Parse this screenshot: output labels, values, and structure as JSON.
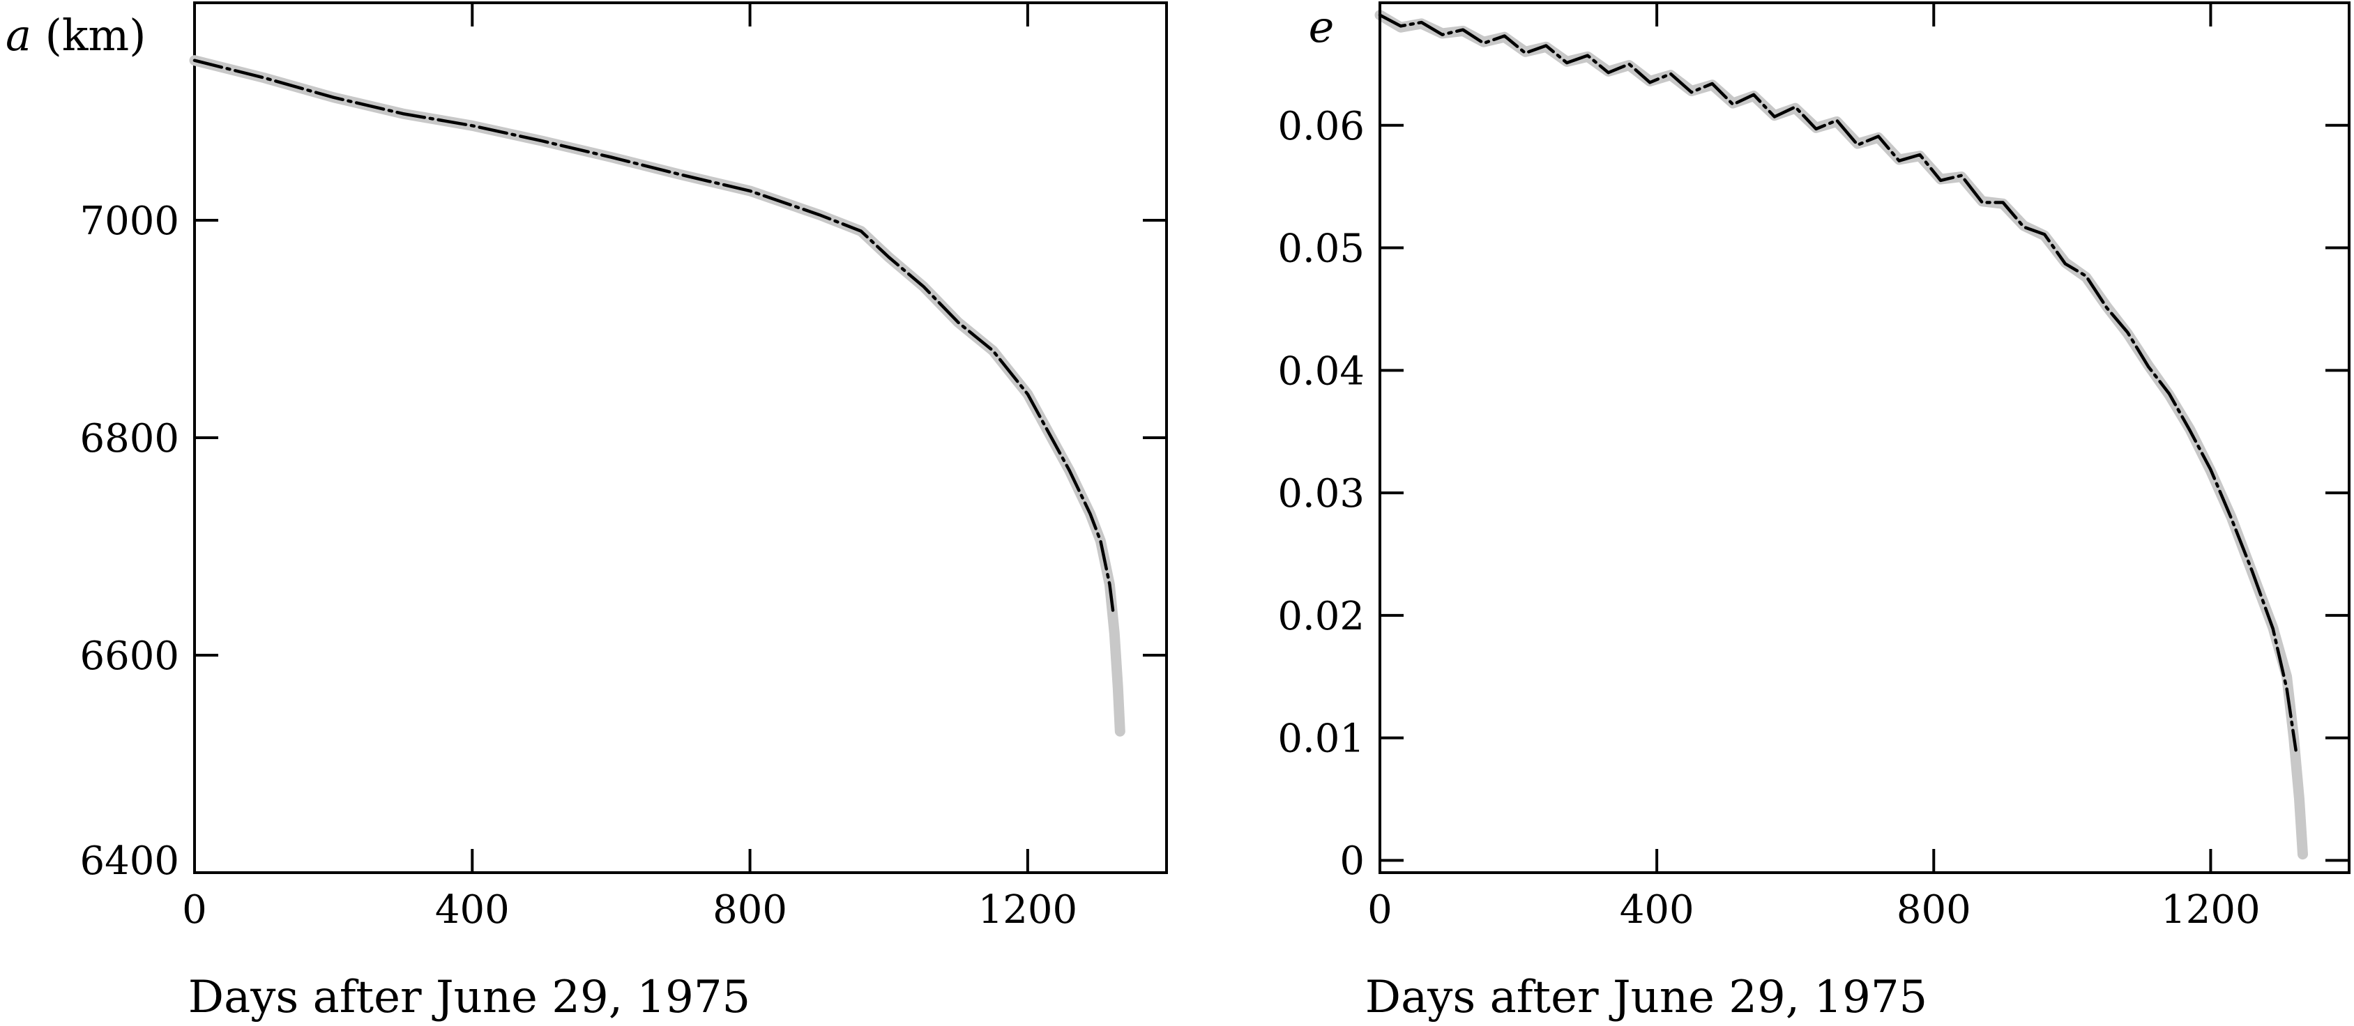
{
  "chart_data": [
    {
      "type": "line",
      "title": "",
      "ylabel_var": "a",
      "ylabel_unit": "(km)",
      "xlabel": "Days after June 29, 1975",
      "xlim": [
        0,
        1400
      ],
      "ylim": [
        6400,
        7200
      ],
      "xticks": [
        0,
        400,
        800,
        1200
      ],
      "xtick_labels": [
        "0",
        "400",
        "800",
        "1200"
      ],
      "yticks": [
        6400,
        6600,
        6800,
        7000
      ],
      "ytick_labels": [
        "6400",
        "6600",
        "6800",
        "7000"
      ],
      "grid": false,
      "legend": "none",
      "series": [
        {
          "style": "thick light-grey solid",
          "color": "#c8c8c8",
          "x": [
            0,
            100,
            200,
            300,
            400,
            500,
            600,
            700,
            800,
            900,
            960,
            1000,
            1050,
            1100,
            1150,
            1200,
            1230,
            1260,
            1290,
            1305,
            1318,
            1325,
            1330,
            1333
          ],
          "y": [
            7147,
            7131,
            7113,
            7098,
            7087,
            7073,
            7058,
            7042,
            7027,
            7005,
            6990,
            6966,
            6939,
            6906,
            6880,
            6840,
            6805,
            6770,
            6730,
            6705,
            6665,
            6620,
            6570,
            6530
          ]
        },
        {
          "style": "thin black dash-dot",
          "color": "#000000",
          "x": [
            0,
            100,
            200,
            300,
            400,
            500,
            600,
            700,
            800,
            900,
            960,
            1000,
            1050,
            1100,
            1150,
            1200,
            1230,
            1260,
            1290,
            1305,
            1318,
            1323
          ],
          "y": [
            7147,
            7131,
            7113,
            7098,
            7087,
            7073,
            7058,
            7042,
            7027,
            7005,
            6990,
            6966,
            6939,
            6906,
            6880,
            6840,
            6805,
            6770,
            6730,
            6705,
            6665,
            6640
          ]
        }
      ]
    },
    {
      "type": "line",
      "title": "",
      "ylabel_var": "e",
      "ylabel_unit": "",
      "xlabel": "Days after June 29, 1975",
      "xlim": [
        0,
        1400
      ],
      "ylim": [
        -0.001,
        0.07
      ],
      "xticks": [
        0,
        400,
        800,
        1200
      ],
      "xtick_labels": [
        "0",
        "400",
        "800",
        "1200"
      ],
      "yticks": [
        0,
        0.01,
        0.02,
        0.03,
        0.04,
        0.05,
        0.06
      ],
      "ytick_labels": [
        "0",
        "0.01",
        "0.02",
        "0.03",
        "0.04",
        "0.05",
        "0.06"
      ],
      "grid": false,
      "legend": "none",
      "series": [
        {
          "style": "thick light-grey oscillating",
          "color": "#c8c8c8",
          "x": [
            0,
            30,
            60,
            90,
            120,
            150,
            180,
            210,
            240,
            270,
            300,
            330,
            360,
            390,
            420,
            450,
            480,
            510,
            540,
            570,
            600,
            630,
            660,
            690,
            720,
            750,
            780,
            810,
            840,
            870,
            900,
            930,
            960,
            990,
            1020,
            1050,
            1080,
            1110,
            1140,
            1170,
            1200,
            1230,
            1260,
            1290,
            1310,
            1320,
            1328,
            1333
          ],
          "y": [
            0.069,
            0.068,
            0.0683,
            0.0675,
            0.0677,
            0.0668,
            0.0672,
            0.066,
            0.0664,
            0.0652,
            0.0656,
            0.0644,
            0.0649,
            0.0636,
            0.0641,
            0.0628,
            0.0633,
            0.0618,
            0.0624,
            0.0608,
            0.0614,
            0.0598,
            0.0603,
            0.0585,
            0.059,
            0.0572,
            0.0575,
            0.0556,
            0.0558,
            0.0538,
            0.0536,
            0.0518,
            0.051,
            0.0488,
            0.0476,
            0.0452,
            0.043,
            0.0404,
            0.038,
            0.0352,
            0.0318,
            0.028,
            0.0235,
            0.019,
            0.015,
            0.01,
            0.005,
            0.0005
          ]
        },
        {
          "style": "thin black dash-dot oscillating",
          "color": "#000000",
          "x": [
            0,
            30,
            60,
            90,
            120,
            150,
            180,
            210,
            240,
            270,
            300,
            330,
            360,
            390,
            420,
            450,
            480,
            510,
            540,
            570,
            600,
            630,
            660,
            690,
            720,
            750,
            780,
            810,
            840,
            870,
            900,
            930,
            960,
            990,
            1020,
            1050,
            1080,
            1110,
            1140,
            1170,
            1200,
            1230,
            1260,
            1290,
            1310,
            1323
          ],
          "y": [
            0.069,
            0.0681,
            0.0684,
            0.0674,
            0.0678,
            0.0667,
            0.0673,
            0.0659,
            0.0665,
            0.0651,
            0.0657,
            0.0643,
            0.065,
            0.0635,
            0.0642,
            0.0627,
            0.0634,
            0.0617,
            0.0625,
            0.0607,
            0.0615,
            0.0597,
            0.0604,
            0.0584,
            0.0591,
            0.0571,
            0.0576,
            0.0555,
            0.0559,
            0.0537,
            0.0537,
            0.0517,
            0.0511,
            0.0487,
            0.0477,
            0.0451,
            0.0431,
            0.0403,
            0.0381,
            0.0351,
            0.0319,
            0.0279,
            0.0236,
            0.0189,
            0.014,
            0.009
          ]
        }
      ]
    }
  ]
}
